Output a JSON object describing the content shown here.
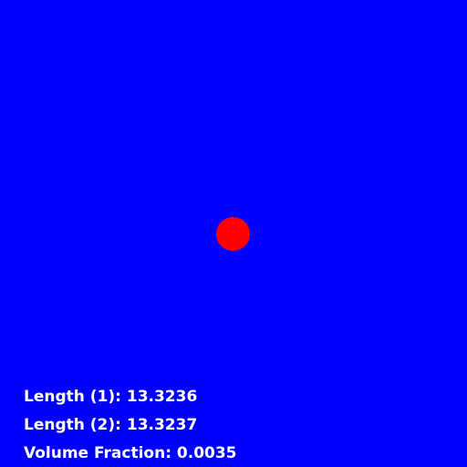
{
  "scene": {
    "background_color": "#0000ff",
    "droplet": {
      "core_color": "#ff0000",
      "edge_colors": [
        "#ffff00",
        "#00ff66",
        "#00ccff"
      ]
    }
  },
  "stats": {
    "length1": "Length (1): 13.3236",
    "length2": "Length (2): 13.3237",
    "volume_fraction": "Volume Fraction: 0.0035"
  }
}
